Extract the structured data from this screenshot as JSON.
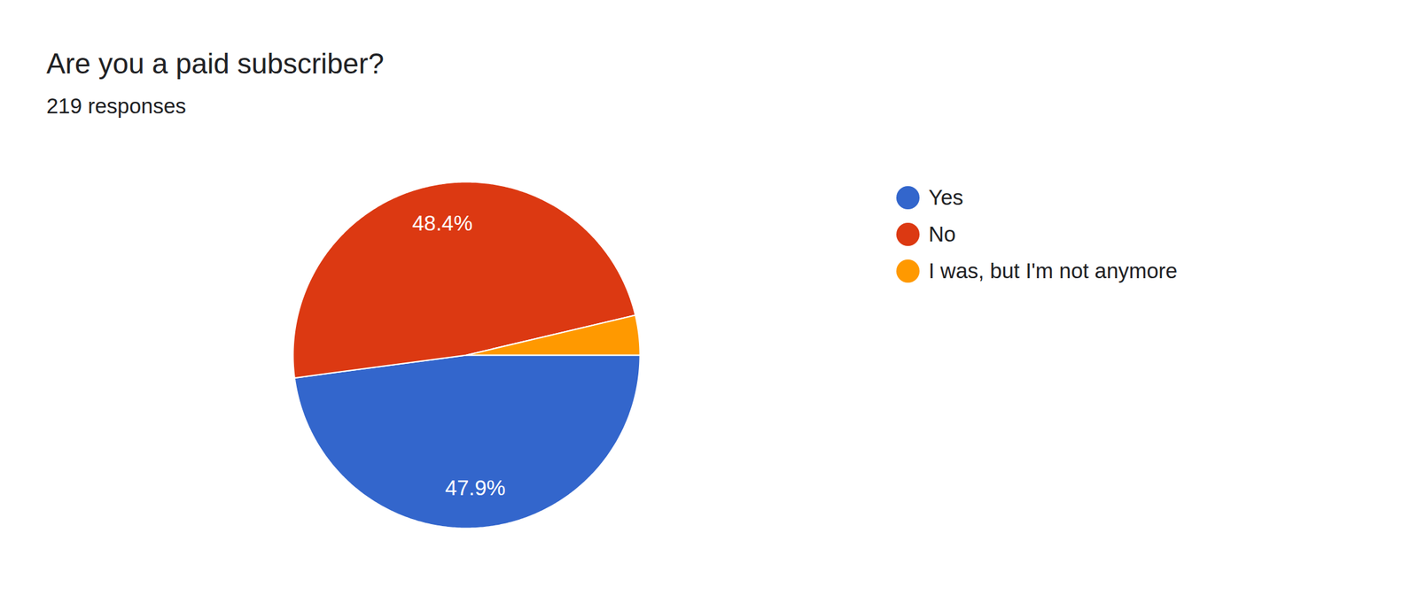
{
  "chart_data": {
    "type": "pie",
    "title": "Are you a paid subscriber?",
    "subtitle": "219 responses",
    "categories": [
      "Yes",
      "No",
      "I was, but I'm not anymore"
    ],
    "values": [
      47.9,
      48.4,
      3.7
    ],
    "value_labels": [
      "47.9%",
      "48.4%",
      null
    ],
    "colors": [
      "#3366cc",
      "#dc3912",
      "#ff9900"
    ],
    "data_labels": true,
    "legend": "right"
  }
}
